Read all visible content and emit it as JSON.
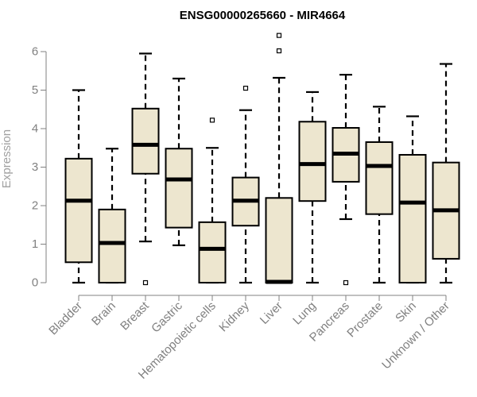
{
  "chart_data": {
    "type": "boxplot",
    "title": "ENSG00000265660 - MIR4664",
    "xlabel": "",
    "ylabel": "Expression",
    "ylim": [
      0,
      6.5
    ],
    "yticks": [
      0,
      1,
      2,
      3,
      4,
      5,
      6
    ],
    "box_fill": "#ede6cf",
    "categories": [
      "Bladder",
      "Brain",
      "Breast",
      "Gastric",
      "Hematopoietic cells",
      "Kidney",
      "Liver",
      "Lung",
      "Pancreas",
      "Prostate",
      "Skin",
      "Unknown / Other"
    ],
    "boxes": [
      {
        "min": 0.0,
        "q1": 0.53,
        "median": 2.13,
        "q3": 3.22,
        "max": 5.0,
        "outliers": []
      },
      {
        "min": 0.0,
        "q1": 0.0,
        "median": 1.03,
        "q3": 1.9,
        "max": 3.48,
        "outliers": []
      },
      {
        "min": 1.07,
        "q1": 2.83,
        "median": 3.58,
        "q3": 4.52,
        "max": 5.95,
        "outliers": [
          0.0
        ]
      },
      {
        "min": 0.97,
        "q1": 1.43,
        "median": 2.68,
        "q3": 3.48,
        "max": 5.3,
        "outliers": []
      },
      {
        "min": 0.0,
        "q1": 0.0,
        "median": 0.88,
        "q3": 1.57,
        "max": 3.5,
        "outliers": [
          4.22
        ]
      },
      {
        "min": 0.0,
        "q1": 1.48,
        "median": 2.13,
        "q3": 2.73,
        "max": 4.48,
        "outliers": [
          5.05
        ]
      },
      {
        "min": 0.0,
        "q1": 0.0,
        "median": 0.02,
        "q3": 2.2,
        "max": 5.32,
        "outliers": [
          6.02,
          6.42
        ]
      },
      {
        "min": 0.0,
        "q1": 2.12,
        "median": 3.08,
        "q3": 4.18,
        "max": 4.95,
        "outliers": []
      },
      {
        "min": 1.65,
        "q1": 2.62,
        "median": 3.35,
        "q3": 4.02,
        "max": 5.4,
        "outliers": [
          0.0
        ]
      },
      {
        "min": 0.0,
        "q1": 1.78,
        "median": 3.03,
        "q3": 3.65,
        "max": 4.57,
        "outliers": []
      },
      {
        "min": 0.0,
        "q1": 0.0,
        "median": 2.08,
        "q3": 3.32,
        "max": 4.32,
        "outliers": []
      },
      {
        "min": 0.0,
        "q1": 0.62,
        "median": 1.88,
        "q3": 3.12,
        "max": 5.68,
        "outliers": []
      }
    ]
  }
}
